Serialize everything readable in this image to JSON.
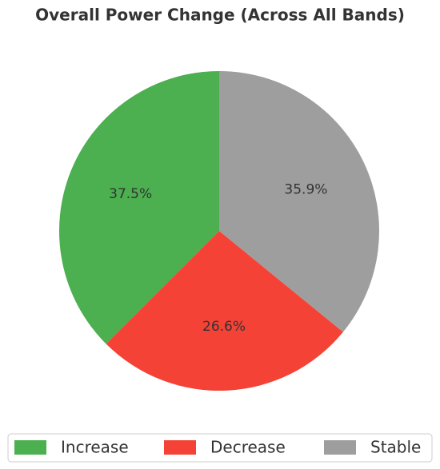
{
  "chart_data": {
    "type": "pie",
    "title": "Overall Power Change (Across All Bands)",
    "categories": [
      "Increase",
      "Decrease",
      "Stable"
    ],
    "values": [
      37.5,
      26.6,
      35.9
    ],
    "value_labels": [
      "37.5%",
      "26.6%",
      "35.9%"
    ],
    "colors": [
      "#4caf50",
      "#f44336",
      "#9e9e9e"
    ],
    "legend": "bottom"
  }
}
